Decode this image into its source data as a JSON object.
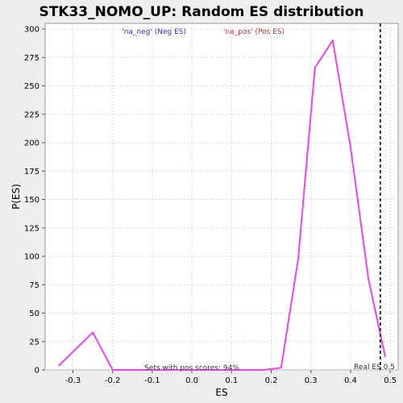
{
  "chart_data": {
    "type": "line",
    "title": "STK33_NOMO_UP: Random ES distribution",
    "xlabel": "ES",
    "ylabel": "P(ES)",
    "xlim": [
      -0.37,
      0.52
    ],
    "ylim": [
      0,
      305
    ],
    "x_ticks": [
      -0.3,
      -0.2,
      -0.1,
      0.0,
      0.1,
      0.2,
      0.3,
      0.4,
      0.5
    ],
    "x_tick_labels": [
      "-0.3",
      "-0.2",
      "-0.1",
      "0.0",
      "0.1",
      "0.2",
      "0.3",
      "0.4",
      "0.5"
    ],
    "y_ticks": [
      0,
      25,
      50,
      75,
      100,
      125,
      150,
      175,
      200,
      225,
      250,
      275,
      300
    ],
    "y_tick_labels": [
      "0",
      "25",
      "50",
      "75",
      "100",
      "125",
      "150",
      "175",
      "200",
      "225",
      "250",
      "275",
      "300"
    ],
    "grid": true,
    "legend": {
      "placement": "top-center",
      "entries": [
        {
          "text": "'na_neg' (Neg ES)",
          "color": "#3333cc"
        },
        {
          "text": "'na_pos' (Pos ES)",
          "color": "#cc3333"
        }
      ]
    },
    "series": [
      {
        "color": "#ee44ee",
        "x": [
          -0.335,
          -0.25,
          -0.2,
          -0.16,
          -0.1,
          0.0,
          0.1,
          0.18,
          0.225,
          0.268,
          0.31,
          0.355,
          0.4,
          0.445,
          0.487
        ],
        "y": [
          4,
          33,
          0,
          0,
          0,
          0,
          0,
          0,
          2,
          98,
          266,
          290,
          196,
          80,
          12
        ]
      }
    ],
    "reference_line": {
      "x": 0.475,
      "style": "dashed",
      "color": "#333333"
    },
    "annotations": {
      "real_es": "Real ES 0.5",
      "pos_scores": "Sets with pos scores: 94%"
    }
  }
}
